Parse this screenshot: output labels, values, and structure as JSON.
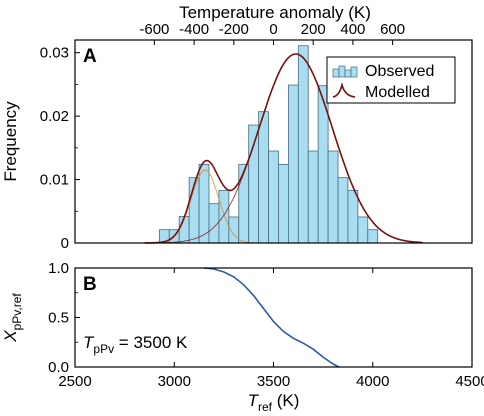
{
  "chart_data": [
    {
      "panel_label": "A",
      "type": "bar",
      "ylabel": "Frequency",
      "ylim": [
        0,
        0.032
      ],
      "xlim_ref": [
        2500,
        4500
      ],
      "y_ticks": [
        "0",
        "0.01",
        "0.02",
        "0.03"
      ],
      "top_axis": {
        "label": "Temperature anomaly (K)",
        "ticks": [
          "-600",
          "-400",
          "-200",
          "0",
          "200",
          "400",
          "600"
        ]
      },
      "legend": {
        "observed": "Observed",
        "modelled": "Modelled",
        "placement": "top-right"
      },
      "bin_width": 50,
      "bins": [
        {
          "x0": 2925,
          "v": 0.0021
        },
        {
          "x0": 2975,
          "v": 0.0021
        },
        {
          "x0": 3025,
          "v": 0.0042
        },
        {
          "x0": 3075,
          "v": 0.0103
        },
        {
          "x0": 3125,
          "v": 0.0124
        },
        {
          "x0": 3175,
          "v": 0.0062
        },
        {
          "x0": 3225,
          "v": 0.0083
        },
        {
          "x0": 3275,
          "v": 0.0041
        },
        {
          "x0": 3325,
          "v": 0.0124
        },
        {
          "x0": 3375,
          "v": 0.0186
        },
        {
          "x0": 3425,
          "v": 0.0207
        },
        {
          "x0": 3475,
          "v": 0.0145
        },
        {
          "x0": 3525,
          "v": 0.0124
        },
        {
          "x0": 3575,
          "v": 0.0249
        },
        {
          "x0": 3625,
          "v": 0.0311
        },
        {
          "x0": 3675,
          "v": 0.0145
        },
        {
          "x0": 3725,
          "v": 0.0248
        },
        {
          "x0": 3775,
          "v": 0.0145
        },
        {
          "x0": 3825,
          "v": 0.0103
        },
        {
          "x0": 3875,
          "v": 0.0083
        },
        {
          "x0": 3925,
          "v": 0.0041
        },
        {
          "x0": 3975,
          "v": 0.0021
        }
      ],
      "components": [
        {
          "mean": 3155,
          "sd": 70,
          "amplitude": 0.0115,
          "color": "#d98b2e"
        },
        {
          "mean": 3612,
          "sd": 185,
          "amplitude": 0.0298,
          "color": "#8b1a1a"
        }
      ],
      "colors": {
        "bar_fill": "#a8ddf2",
        "bar_edge": "#4a6b7a",
        "model_line": "#7a1010"
      }
    },
    {
      "panel_label": "B",
      "type": "line",
      "xlabel_main": "T",
      "xlabel_sub": "ref",
      "xlabel_unit": " (K)",
      "ylabel_main": "X",
      "ylabel_sub": "pPv,ref",
      "ylim": [
        0,
        1.0
      ],
      "xlim": [
        2500,
        4500
      ],
      "x_ticks": [
        "2500",
        "3000",
        "3500",
        "4000",
        "4500"
      ],
      "y_ticks": [
        "0.0",
        "0.5",
        "1.0"
      ],
      "annotation_main": "T",
      "annotation_sub": "pPv",
      "annotation_value": " = 3500 K",
      "x": [
        3150,
        3200,
        3250,
        3300,
        3350,
        3400,
        3450,
        3500,
        3550,
        3600,
        3650,
        3700,
        3750,
        3800,
        3830
      ],
      "y": [
        1.0,
        0.99,
        0.96,
        0.91,
        0.83,
        0.72,
        0.59,
        0.46,
        0.36,
        0.29,
        0.24,
        0.18,
        0.1,
        0.03,
        0.0
      ],
      "color": "#2d5da8"
    }
  ]
}
